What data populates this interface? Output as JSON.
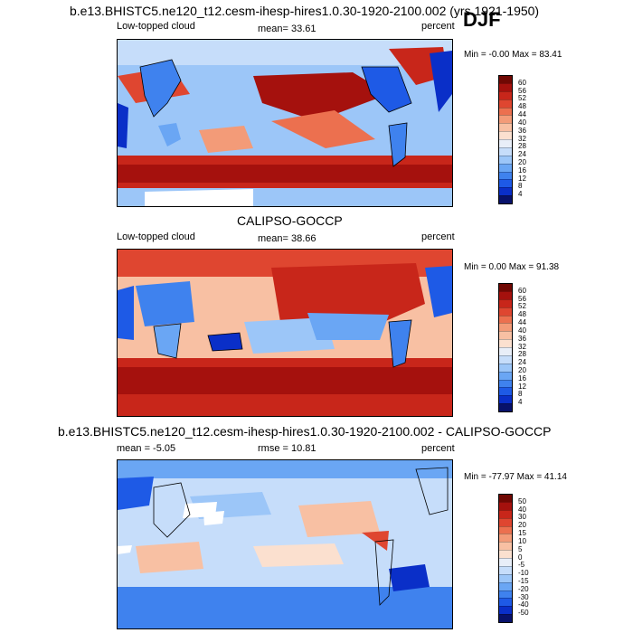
{
  "season": "DJF",
  "palette": [
    "#08126b",
    "#0a2fc8",
    "#1e5ae6",
    "#3f82ee",
    "#6aa6f4",
    "#9cc6f8",
    "#c6ddfa",
    "#e8eef8",
    "#fbe0cf",
    "#f8c0a3",
    "#f39b78",
    "#ec704f",
    "#df4630",
    "#c8261a",
    "#a5110d",
    "#700803"
  ],
  "panels": [
    {
      "id": "model",
      "title": "b.e13.BHISTC5.ne120_t12.cesm-ihesp-hires1.0.30-1920-2100.002 (yrs 1921-1950)",
      "left_label": "Low-topped cloud",
      "center_label": "mean=  33.61",
      "right_label": "percent",
      "minmax": "Min =  -0.00 Max =  83.41",
      "colorbar_levels": [
        "60",
        "56",
        "52",
        "48",
        "44",
        "40",
        "36",
        "32",
        "28",
        "24",
        "20",
        "16",
        "12",
        "8",
        "4"
      ]
    },
    {
      "id": "obs",
      "title": "CALIPSO-GOCCP",
      "left_label": "Low-topped cloud",
      "center_label": "mean=  38.66",
      "right_label": "percent",
      "minmax": "Min =   0.00 Max =  91.38",
      "colorbar_levels": [
        "60",
        "56",
        "52",
        "48",
        "44",
        "40",
        "36",
        "32",
        "28",
        "24",
        "20",
        "16",
        "12",
        "8",
        "4"
      ]
    },
    {
      "id": "diff",
      "title": "b.e13.BHISTC5.ne120_t12.cesm-ihesp-hires1.0.30-1920-2100.002 - CALIPSO-GOCCP",
      "left_label": "mean =  -5.05",
      "center_label": "rmse =  10.81",
      "right_label": "percent",
      "minmax": "Min = -77.97 Max =  41.14",
      "colorbar_levels": [
        "50",
        "40",
        "30",
        "20",
        "15",
        "10",
        "5",
        "0",
        "-5",
        "-10",
        "-15",
        "-20",
        "-30",
        "-40",
        "-50"
      ]
    }
  ],
  "chart_data": [
    {
      "type": "heatmap",
      "title": "b.e13.BHISTC5.ne120_t12.cesm-ihesp-hires1.0.30-1920-2100.002 (yrs 1921-1950)",
      "variable": "Low-topped cloud",
      "units": "percent",
      "mean": 33.61,
      "min": -0.0,
      "max": 83.41,
      "levels": [
        4,
        8,
        12,
        16,
        20,
        24,
        28,
        32,
        36,
        40,
        44,
        48,
        52,
        56,
        60
      ],
      "season": "DJF"
    },
    {
      "type": "heatmap",
      "title": "CALIPSO-GOCCP",
      "variable": "Low-topped cloud",
      "units": "percent",
      "mean": 38.66,
      "min": 0.0,
      "max": 91.38,
      "levels": [
        4,
        8,
        12,
        16,
        20,
        24,
        28,
        32,
        36,
        40,
        44,
        48,
        52,
        56,
        60
      ]
    },
    {
      "type": "heatmap",
      "title": "b.e13.BHISTC5.ne120_t12.cesm-ihesp-hires1.0.30-1920-2100.002 - CALIPSO-GOCCP",
      "units": "percent",
      "mean": -5.05,
      "rmse": 10.81,
      "min": -77.97,
      "max": 41.14,
      "levels": [
        -50,
        -40,
        -30,
        -20,
        -15,
        -10,
        -5,
        0,
        5,
        10,
        15,
        20,
        30,
        40,
        50
      ]
    }
  ]
}
